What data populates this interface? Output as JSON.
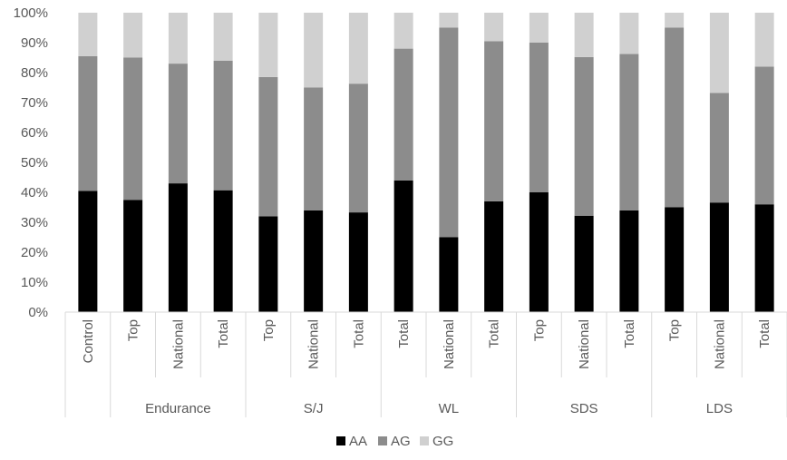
{
  "chart_data": {
    "type": "bar",
    "stacked": "percent",
    "title": "",
    "xlabel": "",
    "ylabel": "",
    "ylim": [
      0,
      100
    ],
    "ytick_labels": [
      "0%",
      "10%",
      "20%",
      "30%",
      "40%",
      "50%",
      "60%",
      "70%",
      "80%",
      "90%",
      "100%"
    ],
    "categories": [
      "Control",
      "Top",
      "National",
      "Total",
      "Top",
      "National",
      "Total",
      "Total",
      "National",
      "Total",
      "Top",
      "National",
      "Total",
      "Top",
      "National",
      "Total"
    ],
    "groups": [
      {
        "label": "",
        "start": 0,
        "count": 1
      },
      {
        "label": "Endurance",
        "start": 1,
        "count": 3
      },
      {
        "label": "S/J",
        "start": 4,
        "count": 3
      },
      {
        "label": "WL",
        "start": 7,
        "count": 3
      },
      {
        "label": "SDS",
        "start": 10,
        "count": 3
      },
      {
        "label": "LDS",
        "start": 13,
        "count": 3
      }
    ],
    "series": [
      {
        "name": "AA",
        "color": "#000000",
        "values": [
          40.5,
          37.5,
          43,
          40.7,
          32,
          34,
          33.3,
          44,
          25,
          37,
          40,
          32.2,
          34,
          35,
          36.6,
          36
        ]
      },
      {
        "name": "AG",
        "color": "#8c8c8c",
        "values": [
          45,
          47.5,
          40,
          43.3,
          46.5,
          41,
          43,
          44,
          70,
          53.5,
          50,
          53,
          52.2,
          60,
          36.6,
          46
        ]
      },
      {
        "name": "GG",
        "color": "#d0d0d0",
        "values": [
          14.5,
          15,
          17,
          16,
          21.5,
          25,
          23.7,
          12,
          5,
          9.5,
          10,
          14.8,
          13.8,
          5,
          26.8,
          18
        ]
      }
    ],
    "legend_position": "bottom",
    "grid": false
  }
}
